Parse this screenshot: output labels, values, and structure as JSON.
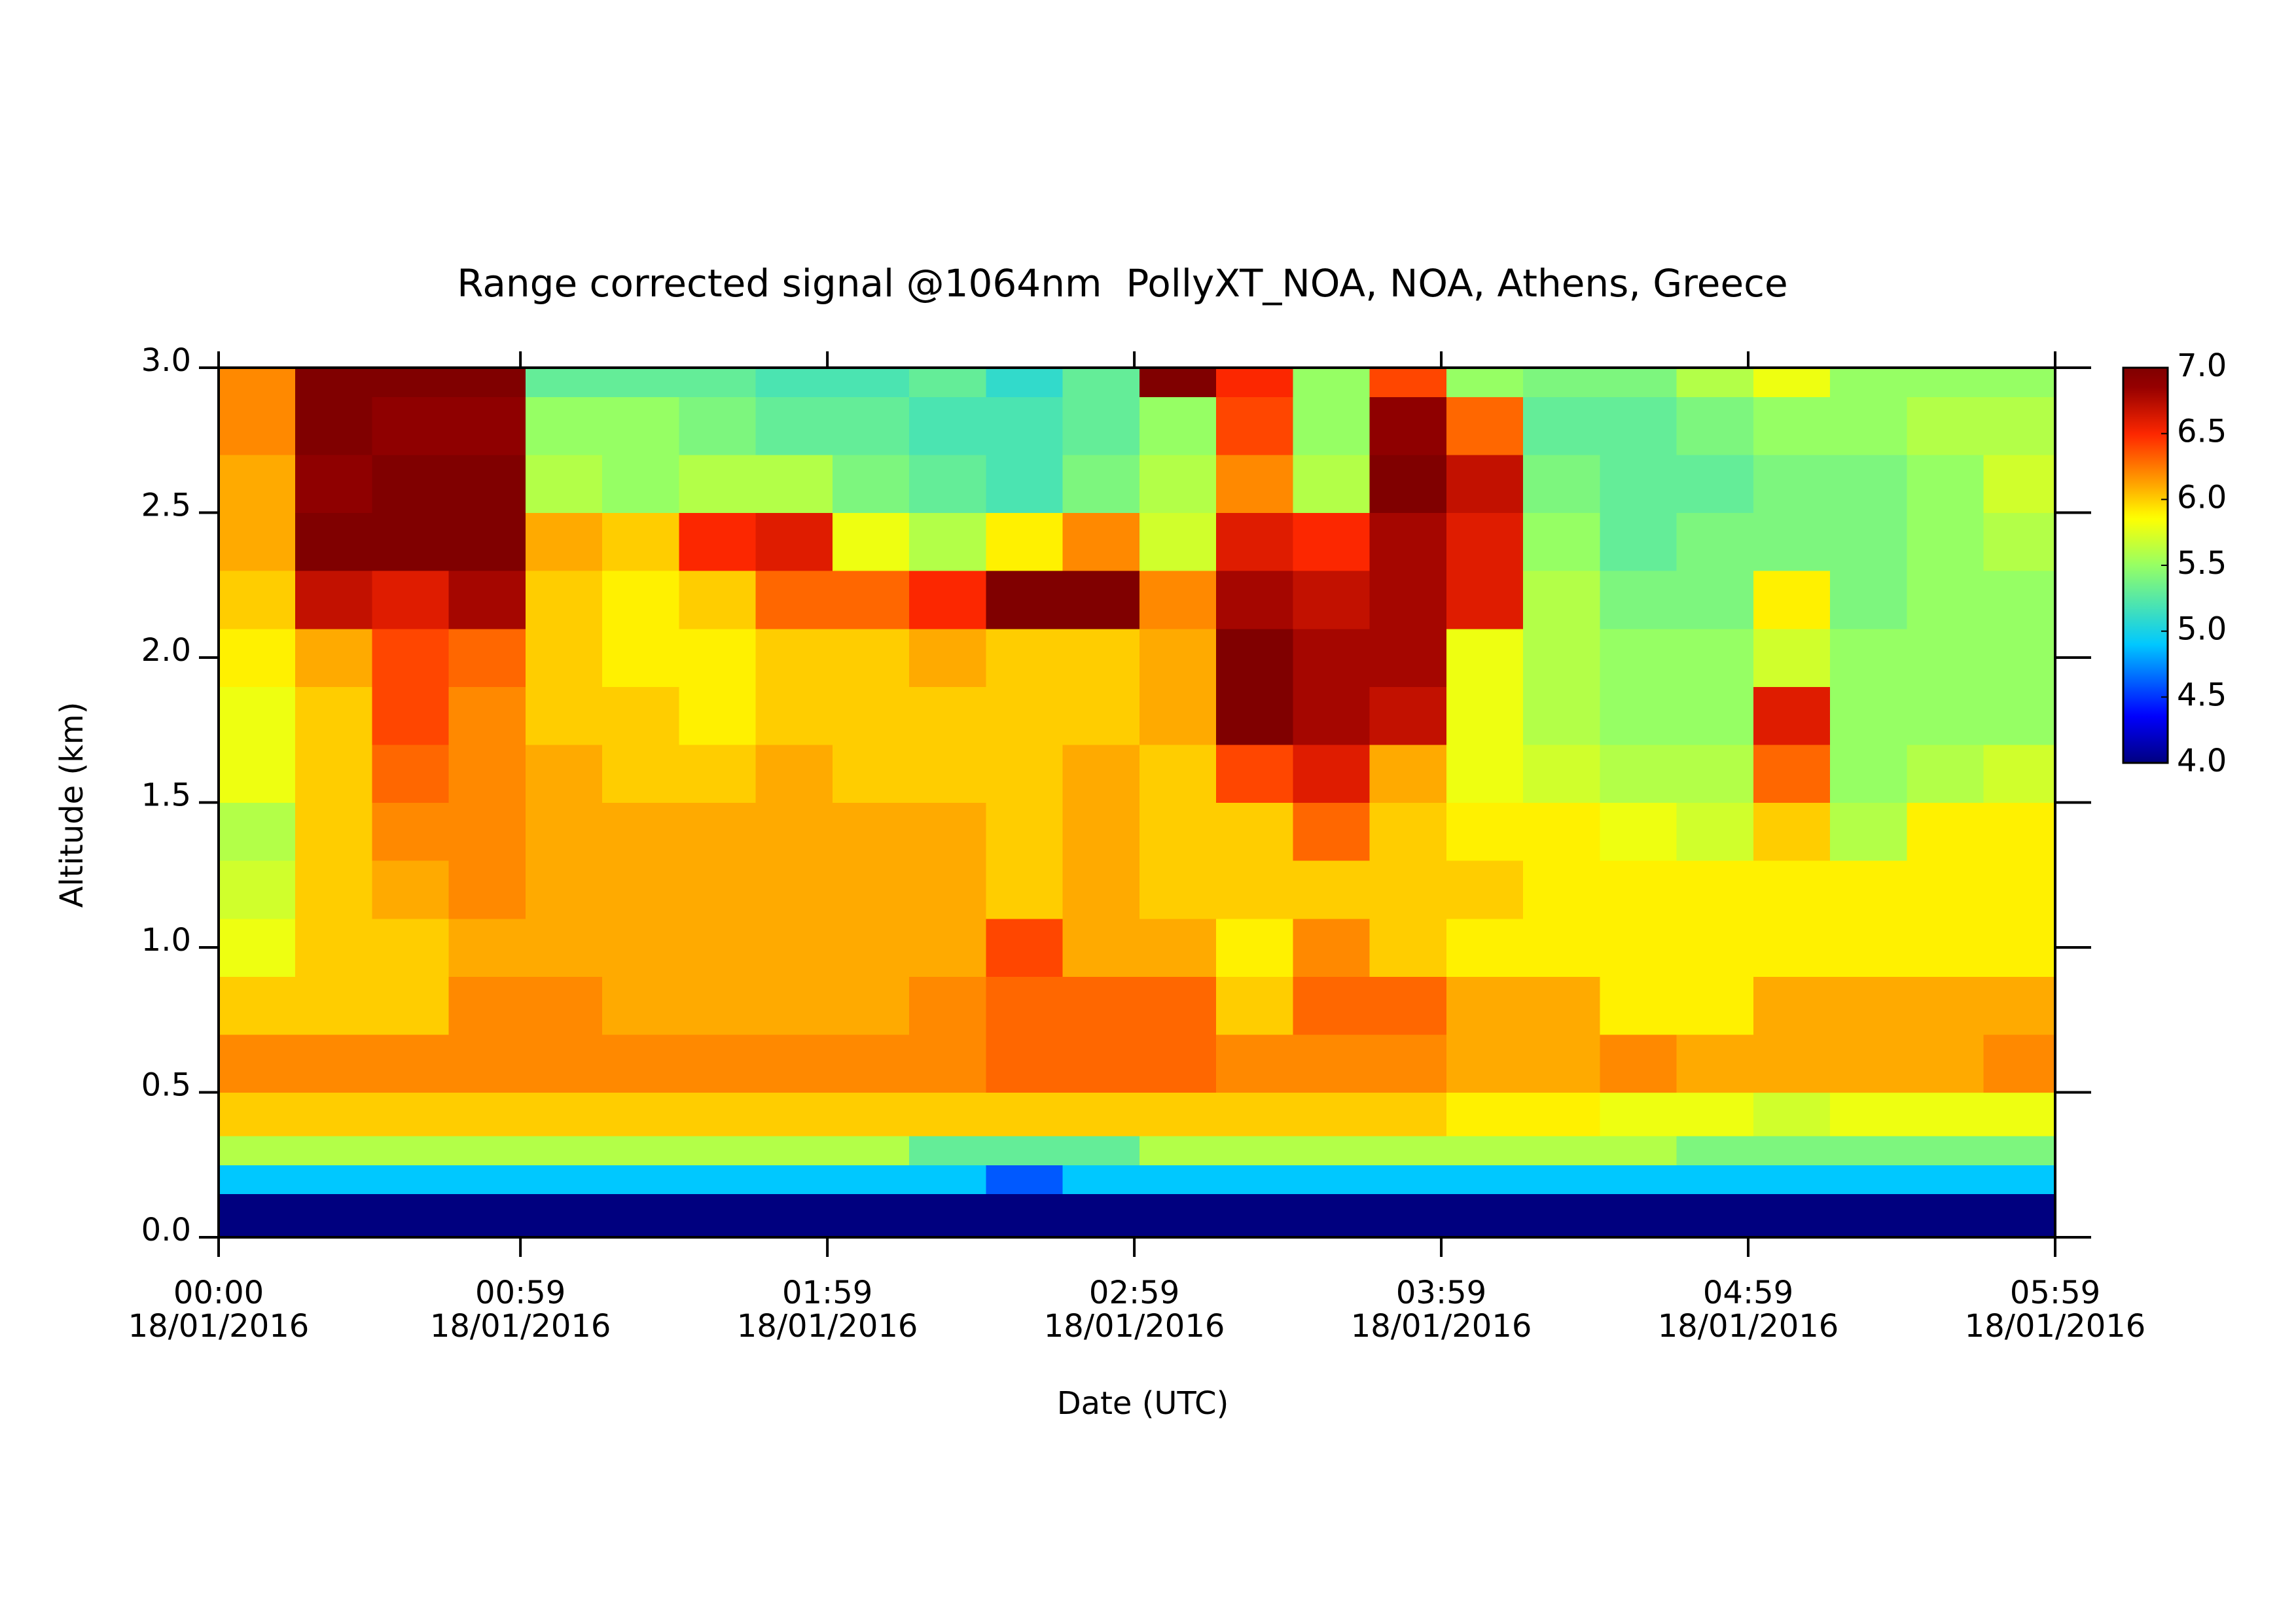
{
  "chart_data": {
    "type": "heatmap",
    "title": "Range corrected signal @1064nm  PollyXT_NOA, NOA, Athens, Greece",
    "xlabel": "Date (UTC)",
    "ylabel": "Altitude (km)",
    "date_label": "18/01/2016",
    "xlim": [
      0,
      359
    ],
    "xticks": [
      {
        "value": 0,
        "label": "00:00"
      },
      {
        "value": 59,
        "label": "00:59"
      },
      {
        "value": 119,
        "label": "01:59"
      },
      {
        "value": 179,
        "label": "02:59"
      },
      {
        "value": 239,
        "label": "03:59"
      },
      {
        "value": 299,
        "label": "04:59"
      },
      {
        "value": 359,
        "label": "05:59"
      }
    ],
    "ylim": [
      0,
      3
    ],
    "yticks": [
      {
        "value": 0,
        "label": "0.0"
      },
      0.5,
      {
        "value": 1,
        "label": "1.0"
      },
      1.5,
      {
        "value": 2,
        "label": "2.0"
      },
      2.5,
      {
        "value": 3,
        "label": "3.0"
      }
    ],
    "clim": [
      4,
      7
    ],
    "cticks": [
      {
        "value": 4,
        "label": "4.0"
      },
      4.5,
      {
        "value": 5,
        "label": "5.0"
      },
      5.5,
      {
        "value": 6,
        "label": "6.0"
      },
      6.5,
      {
        "value": 7,
        "label": "7.0"
      }
    ],
    "colormap": "jet",
    "xbins": [
      0,
      15,
      30,
      45,
      60,
      75,
      90,
      105,
      120,
      135,
      150,
      165,
      180,
      195,
      210,
      225,
      240,
      255,
      270,
      285,
      300,
      315,
      330,
      345,
      359
    ],
    "ybins": [
      0,
      0.15,
      0.25,
      0.35,
      0.5,
      0.7,
      0.9,
      1.1,
      1.3,
      1.5,
      1.7,
      1.9,
      2.1,
      2.3,
      2.5,
      2.7,
      2.9,
      3.0
    ],
    "z": [
      [
        4.0,
        4.0,
        4.0,
        4.0,
        4.0,
        4.0,
        4.0,
        4.0,
        4.0,
        4.0,
        4.0,
        4.0,
        4.0,
        4.0,
        4.0,
        4.0,
        4.0,
        4.0,
        4.0,
        4.0,
        4.0,
        4.0,
        4.0,
        4.0
      ],
      [
        4.9,
        4.9,
        4.9,
        4.9,
        4.9,
        4.9,
        4.9,
        4.9,
        4.9,
        4.9,
        4.6,
        4.9,
        4.9,
        4.9,
        4.9,
        4.9,
        4.9,
        4.9,
        4.9,
        4.9,
        4.9,
        4.9,
        4.9,
        4.9
      ],
      [
        5.6,
        5.6,
        5.6,
        5.6,
        5.6,
        5.6,
        5.6,
        5.6,
        5.6,
        5.3,
        5.3,
        5.3,
        5.6,
        5.6,
        5.6,
        5.6,
        5.6,
        5.6,
        5.6,
        5.4,
        5.4,
        5.4,
        5.4,
        5.4
      ],
      [
        6.0,
        6.0,
        6.0,
        6.0,
        6.0,
        6.0,
        6.0,
        6.0,
        6.0,
        6.0,
        6.0,
        6.0,
        6.0,
        6.0,
        6.0,
        6.0,
        5.9,
        5.9,
        5.8,
        5.8,
        5.7,
        5.8,
        5.8,
        5.8
      ],
      [
        6.2,
        6.2,
        6.2,
        6.2,
        6.2,
        6.2,
        6.2,
        6.2,
        6.2,
        6.2,
        6.3,
        6.3,
        6.3,
        6.2,
        6.2,
        6.2,
        6.1,
        6.1,
        6.2,
        6.1,
        6.1,
        6.1,
        6.1,
        6.2
      ],
      [
        6.0,
        6.0,
        6.0,
        6.2,
        6.2,
        6.1,
        6.1,
        6.1,
        6.1,
        6.2,
        6.3,
        6.3,
        6.3,
        6.0,
        6.3,
        6.3,
        6.1,
        6.1,
        5.9,
        5.9,
        6.1,
        6.1,
        6.1,
        6.1
      ],
      [
        5.8,
        6.0,
        6.0,
        6.1,
        6.1,
        6.1,
        6.1,
        6.1,
        6.1,
        6.1,
        6.4,
        6.1,
        6.1,
        5.9,
        6.2,
        6.0,
        5.9,
        5.9,
        5.9,
        5.9,
        5.9,
        5.9,
        5.9,
        5.9
      ],
      [
        5.7,
        6.0,
        6.1,
        6.2,
        6.1,
        6.1,
        6.1,
        6.1,
        6.1,
        6.1,
        6.0,
        6.1,
        6.0,
        6.0,
        6.0,
        6.0,
        6.0,
        5.9,
        5.9,
        5.9,
        5.9,
        5.9,
        5.9,
        5.9
      ],
      [
        5.6,
        6.0,
        6.2,
        6.2,
        6.1,
        6.1,
        6.1,
        6.1,
        6.1,
        6.1,
        6.0,
        6.1,
        6.0,
        6.0,
        6.3,
        6.0,
        5.9,
        5.9,
        5.8,
        5.7,
        6.0,
        5.6,
        5.9,
        5.9
      ],
      [
        5.8,
        6.0,
        6.3,
        6.2,
        6.1,
        6.0,
        6.0,
        6.1,
        6.0,
        6.0,
        6.0,
        6.1,
        6.0,
        6.4,
        6.6,
        6.1,
        5.8,
        5.7,
        5.6,
        5.6,
        6.3,
        5.5,
        5.6,
        5.7
      ],
      [
        5.8,
        6.0,
        6.4,
        6.2,
        6.0,
        6.0,
        5.9,
        6.0,
        6.0,
        6.0,
        6.0,
        6.0,
        6.1,
        7.0,
        6.8,
        6.7,
        5.8,
        5.6,
        5.5,
        5.5,
        6.6,
        5.5,
        5.5,
        5.5
      ],
      [
        5.9,
        6.1,
        6.4,
        6.3,
        6.0,
        5.9,
        5.9,
        6.0,
        6.0,
        6.1,
        6.0,
        6.0,
        6.1,
        7.0,
        6.8,
        6.8,
        5.8,
        5.6,
        5.5,
        5.5,
        5.7,
        5.5,
        5.5,
        5.5
      ],
      [
        6.0,
        6.7,
        6.6,
        6.8,
        6.0,
        5.9,
        6.0,
        6.3,
        6.3,
        6.5,
        7.0,
        7.0,
        6.2,
        6.8,
        6.7,
        6.8,
        6.6,
        5.6,
        5.4,
        5.4,
        5.9,
        5.4,
        5.5,
        5.5
      ],
      [
        6.1,
        7.0,
        7.0,
        7.0,
        6.1,
        6.0,
        6.5,
        6.6,
        5.8,
        5.6,
        5.9,
        6.2,
        5.7,
        6.6,
        6.5,
        6.8,
        6.6,
        5.5,
        5.3,
        5.4,
        5.4,
        5.4,
        5.5,
        5.6
      ],
      [
        6.1,
        6.9,
        7.0,
        7.0,
        5.6,
        5.5,
        5.6,
        5.6,
        5.4,
        5.3,
        5.2,
        5.4,
        5.6,
        6.2,
        5.6,
        7.0,
        6.7,
        5.4,
        5.3,
        5.3,
        5.4,
        5.4,
        5.5,
        5.7
      ],
      [
        6.2,
        7.0,
        6.9,
        6.9,
        5.5,
        5.5,
        5.4,
        5.3,
        5.3,
        5.2,
        5.2,
        5.3,
        5.5,
        6.4,
        5.5,
        6.9,
        6.3,
        5.3,
        5.3,
        5.4,
        5.5,
        5.5,
        5.6,
        5.6
      ],
      [
        6.2,
        7.0,
        7.0,
        7.0,
        5.3,
        5.3,
        5.3,
        5.2,
        5.2,
        5.3,
        5.1,
        5.3,
        7.0,
        6.5,
        5.5,
        6.4,
        5.5,
        5.4,
        5.4,
        5.6,
        5.8,
        5.5,
        5.5,
        5.5
      ]
    ]
  }
}
